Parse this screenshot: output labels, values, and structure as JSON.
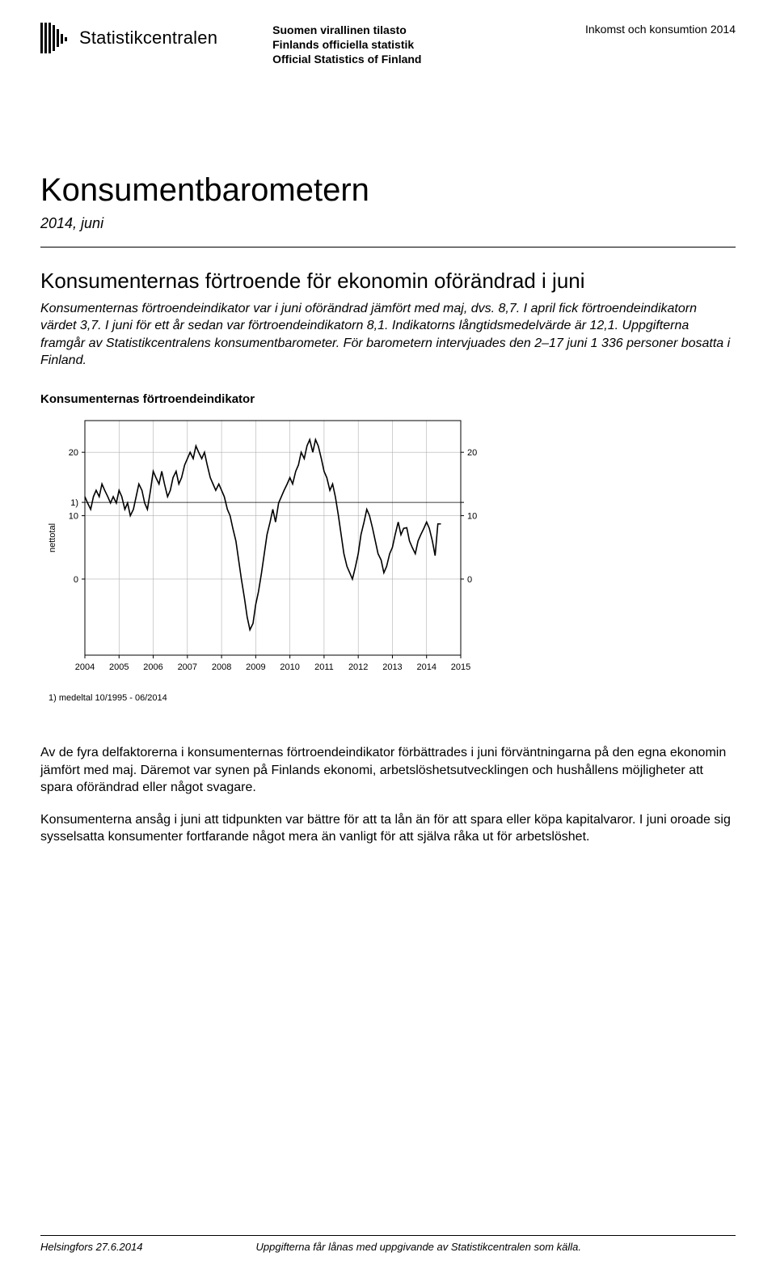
{
  "header": {
    "logo_text": "Statistikcentralen",
    "official_lines": [
      "Suomen virallinen tilasto",
      "Finlands officiella statistik",
      "Official Statistics of Finland"
    ],
    "category": "Inkomst och konsumtion 2014"
  },
  "title": "Konsumentbarometern",
  "subtitle": "2014, juni",
  "section_heading": "Konsumenternas förtroende för ekonomin oförändrad i juni",
  "intro": "Konsumenternas förtroendeindikator var i juni oförändrad jämfört med maj, dvs. 8,7. I april fick förtroendeindikatorn värdet 3,7. I juni för ett år sedan var förtroendeindikatorn 8,1. Indikatorns långtidsmedelvärde är 12,1. Uppgifterna framgår av Statistikcentralens konsumentbarometer. För barometern intervjuades den 2–17 juni 1 336 personer bosatta i Finland.",
  "chart": {
    "title": "Konsumenternas förtroendeindikator",
    "type": "line",
    "ylabel": "nettotal",
    "y_ticks": [
      0,
      10,
      20
    ],
    "y_left_labels": [
      "0",
      "10",
      "20",
      "1)"
    ],
    "y_right_labels": [
      "0",
      "10",
      "20"
    ],
    "x_labels": [
      "2004",
      "2005",
      "2006",
      "2007",
      "2008",
      "2009",
      "2010",
      "2011",
      "2012",
      "2013",
      "2014",
      "2015"
    ],
    "xlim": [
      2004,
      2015
    ],
    "ylim": [
      -12,
      25
    ],
    "mean_line_y": 12.1,
    "footnote": "1) medeltal 10/1995 - 06/2014",
    "line_color": "#000000",
    "grid_color": "#b0b0b0",
    "mean_color": "#000000",
    "background_color": "#ffffff",
    "line_width": 1.6,
    "grid_width": 0.6,
    "series": [
      {
        "x": 2004.0,
        "y": 13
      },
      {
        "x": 2004.08,
        "y": 12
      },
      {
        "x": 2004.17,
        "y": 11
      },
      {
        "x": 2004.25,
        "y": 13
      },
      {
        "x": 2004.33,
        "y": 14
      },
      {
        "x": 2004.42,
        "y": 13
      },
      {
        "x": 2004.5,
        "y": 15
      },
      {
        "x": 2004.58,
        "y": 14
      },
      {
        "x": 2004.67,
        "y": 13
      },
      {
        "x": 2004.75,
        "y": 12
      },
      {
        "x": 2004.83,
        "y": 13
      },
      {
        "x": 2004.92,
        "y": 12
      },
      {
        "x": 2005.0,
        "y": 14
      },
      {
        "x": 2005.08,
        "y": 13
      },
      {
        "x": 2005.17,
        "y": 11
      },
      {
        "x": 2005.25,
        "y": 12
      },
      {
        "x": 2005.33,
        "y": 10
      },
      {
        "x": 2005.42,
        "y": 11
      },
      {
        "x": 2005.5,
        "y": 13
      },
      {
        "x": 2005.58,
        "y": 15
      },
      {
        "x": 2005.67,
        "y": 14
      },
      {
        "x": 2005.75,
        "y": 12
      },
      {
        "x": 2005.83,
        "y": 11
      },
      {
        "x": 2005.92,
        "y": 14
      },
      {
        "x": 2006.0,
        "y": 17
      },
      {
        "x": 2006.08,
        "y": 16
      },
      {
        "x": 2006.17,
        "y": 15
      },
      {
        "x": 2006.25,
        "y": 17
      },
      {
        "x": 2006.33,
        "y": 15
      },
      {
        "x": 2006.42,
        "y": 13
      },
      {
        "x": 2006.5,
        "y": 14
      },
      {
        "x": 2006.58,
        "y": 16
      },
      {
        "x": 2006.67,
        "y": 17
      },
      {
        "x": 2006.75,
        "y": 15
      },
      {
        "x": 2006.83,
        "y": 16
      },
      {
        "x": 2006.92,
        "y": 18
      },
      {
        "x": 2007.0,
        "y": 19
      },
      {
        "x": 2007.08,
        "y": 20
      },
      {
        "x": 2007.17,
        "y": 19
      },
      {
        "x": 2007.25,
        "y": 21
      },
      {
        "x": 2007.33,
        "y": 20
      },
      {
        "x": 2007.42,
        "y": 19
      },
      {
        "x": 2007.5,
        "y": 20
      },
      {
        "x": 2007.58,
        "y": 18
      },
      {
        "x": 2007.67,
        "y": 16
      },
      {
        "x": 2007.75,
        "y": 15
      },
      {
        "x": 2007.83,
        "y": 14
      },
      {
        "x": 2007.92,
        "y": 15
      },
      {
        "x": 2008.0,
        "y": 14
      },
      {
        "x": 2008.08,
        "y": 13
      },
      {
        "x": 2008.17,
        "y": 11
      },
      {
        "x": 2008.25,
        "y": 10
      },
      {
        "x": 2008.33,
        "y": 8
      },
      {
        "x": 2008.42,
        "y": 6
      },
      {
        "x": 2008.5,
        "y": 3
      },
      {
        "x": 2008.58,
        "y": 0
      },
      {
        "x": 2008.67,
        "y": -3
      },
      {
        "x": 2008.75,
        "y": -6
      },
      {
        "x": 2008.83,
        "y": -8
      },
      {
        "x": 2008.92,
        "y": -7
      },
      {
        "x": 2009.0,
        "y": -4
      },
      {
        "x": 2009.08,
        "y": -2
      },
      {
        "x": 2009.17,
        "y": 1
      },
      {
        "x": 2009.25,
        "y": 4
      },
      {
        "x": 2009.33,
        "y": 7
      },
      {
        "x": 2009.42,
        "y": 9
      },
      {
        "x": 2009.5,
        "y": 11
      },
      {
        "x": 2009.58,
        "y": 9
      },
      {
        "x": 2009.67,
        "y": 12
      },
      {
        "x": 2009.75,
        "y": 13
      },
      {
        "x": 2009.83,
        "y": 14
      },
      {
        "x": 2009.92,
        "y": 15
      },
      {
        "x": 2010.0,
        "y": 16
      },
      {
        "x": 2010.08,
        "y": 15
      },
      {
        "x": 2010.17,
        "y": 17
      },
      {
        "x": 2010.25,
        "y": 18
      },
      {
        "x": 2010.33,
        "y": 20
      },
      {
        "x": 2010.42,
        "y": 19
      },
      {
        "x": 2010.5,
        "y": 21
      },
      {
        "x": 2010.58,
        "y": 22
      },
      {
        "x": 2010.67,
        "y": 20
      },
      {
        "x": 2010.75,
        "y": 22
      },
      {
        "x": 2010.83,
        "y": 21
      },
      {
        "x": 2010.92,
        "y": 19
      },
      {
        "x": 2011.0,
        "y": 17
      },
      {
        "x": 2011.08,
        "y": 16
      },
      {
        "x": 2011.17,
        "y": 14
      },
      {
        "x": 2011.25,
        "y": 15
      },
      {
        "x": 2011.33,
        "y": 13
      },
      {
        "x": 2011.42,
        "y": 10
      },
      {
        "x": 2011.5,
        "y": 7
      },
      {
        "x": 2011.58,
        "y": 4
      },
      {
        "x": 2011.67,
        "y": 2
      },
      {
        "x": 2011.75,
        "y": 1
      },
      {
        "x": 2011.83,
        "y": 0
      },
      {
        "x": 2011.92,
        "y": 2
      },
      {
        "x": 2012.0,
        "y": 4
      },
      {
        "x": 2012.08,
        "y": 7
      },
      {
        "x": 2012.17,
        "y": 9
      },
      {
        "x": 2012.25,
        "y": 11
      },
      {
        "x": 2012.33,
        "y": 10
      },
      {
        "x": 2012.42,
        "y": 8
      },
      {
        "x": 2012.5,
        "y": 6
      },
      {
        "x": 2012.58,
        "y": 4
      },
      {
        "x": 2012.67,
        "y": 3
      },
      {
        "x": 2012.75,
        "y": 1
      },
      {
        "x": 2012.83,
        "y": 2
      },
      {
        "x": 2012.92,
        "y": 4
      },
      {
        "x": 2013.0,
        "y": 5
      },
      {
        "x": 2013.08,
        "y": 7
      },
      {
        "x": 2013.17,
        "y": 9
      },
      {
        "x": 2013.25,
        "y": 7
      },
      {
        "x": 2013.33,
        "y": 8
      },
      {
        "x": 2013.42,
        "y": 8.1
      },
      {
        "x": 2013.5,
        "y": 6
      },
      {
        "x": 2013.58,
        "y": 5
      },
      {
        "x": 2013.67,
        "y": 4
      },
      {
        "x": 2013.75,
        "y": 6
      },
      {
        "x": 2013.83,
        "y": 7
      },
      {
        "x": 2013.92,
        "y": 8
      },
      {
        "x": 2014.0,
        "y": 9
      },
      {
        "x": 2014.08,
        "y": 8
      },
      {
        "x": 2014.17,
        "y": 6
      },
      {
        "x": 2014.25,
        "y": 3.7
      },
      {
        "x": 2014.33,
        "y": 8.7
      },
      {
        "x": 2014.42,
        "y": 8.7
      }
    ]
  },
  "para1": "Av de fyra delfaktorerna i konsumenternas förtroendeindikator förbättrades i juni förväntningarna på den egna ekonomin jämfört med maj. Däremot var synen på Finlands ekonomi, arbetslöshetsutvecklingen och hushållens möjligheter att spara oförändrad eller något svagare.",
  "para2": "Konsumenterna ansåg i juni att tidpunkten var bättre för att ta lån än för att spara eller köpa kapitalvaror. I juni oroade sig sysselsatta konsumenter fortfarande något mera än vanligt för att själva råka ut för arbetslöshet.",
  "footer": {
    "left": "Helsingfors 27.6.2014",
    "right": "Uppgifterna får lånas med uppgivande av Statistikcentralen som källa."
  }
}
